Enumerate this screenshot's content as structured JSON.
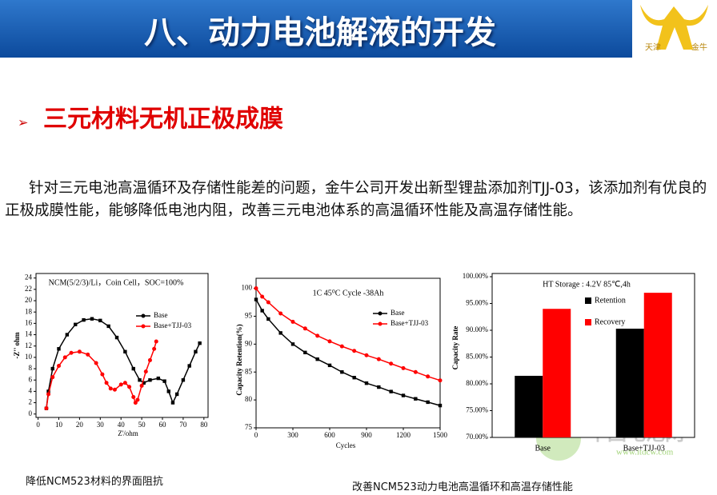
{
  "header": {
    "title": "八、动力电池解液的开发",
    "logo_left": "天津",
    "logo_right": "金牛"
  },
  "section": {
    "heading": "三元材料无机正极成膜"
  },
  "paragraph": "针对三元电池高温循环及存储性能差的问题，金牛公司开发出新型锂盐添加剂TJJ-03，该添加剂有优良的正极成膜性能，能够降低电池内阻，改善三元电池体系的高温循环性能及高温存储性能。",
  "charts": [
    {
      "type": "line",
      "title": "NCM(5/2/3)/Li，Coin Cell，SOC=100%",
      "x_label": "Z'/ohm",
      "y_label": "-Z'' ohm",
      "xlim": [
        -1,
        82
      ],
      "xticks": [
        0,
        10,
        20,
        30,
        40,
        50,
        60,
        70,
        80
      ],
      "ylim": [
        -0.6,
        24.8
      ],
      "yticks": [
        0,
        2,
        4,
        6,
        8,
        10,
        12,
        14,
        16,
        18,
        20,
        22,
        24
      ],
      "series": [
        {
          "name": "Base",
          "color": "#000000",
          "marker": "square",
          "x": [
            4,
            5,
            7,
            10,
            14,
            18,
            22,
            26,
            30,
            34,
            38,
            42,
            46,
            49,
            51,
            54,
            58,
            61,
            63,
            65,
            67,
            70,
            73,
            76,
            78
          ],
          "values": [
            1,
            4,
            8,
            11.5,
            14,
            15.8,
            16.6,
            16.8,
            16.5,
            15.5,
            13.5,
            11,
            8,
            6,
            5.5,
            6,
            6.3,
            5.8,
            4,
            2,
            3.5,
            6,
            8.5,
            11,
            12.5
          ]
        },
        {
          "name": "Base+TJJ-03",
          "color": "#ff0000",
          "marker": "circle",
          "x": [
            4,
            5,
            7,
            10,
            13,
            16,
            20,
            24,
            28,
            31,
            33,
            35,
            37,
            40,
            42,
            44,
            46,
            47,
            48,
            50,
            52,
            54,
            56,
            57
          ],
          "values": [
            1,
            3.5,
            6.5,
            8.5,
            10,
            10.8,
            11,
            10.5,
            9,
            7,
            5.5,
            4.5,
            4.3,
            5.2,
            5.5,
            4.8,
            3,
            2,
            2.5,
            5,
            7.5,
            9.5,
            11.5,
            12.8
          ]
        }
      ]
    },
    {
      "type": "line",
      "title": "1C 45⁰C  Cycle -38Ah",
      "x_label": "Cycles",
      "y_label": "Capacity Retention(%)",
      "xlim": [
        0,
        1500
      ],
      "xticks": [
        0,
        300,
        600,
        900,
        1200,
        1500
      ],
      "ylim": [
        75,
        101.8
      ],
      "yticks": [
        75,
        80,
        85,
        90,
        95,
        100
      ],
      "x": [
        0,
        50,
        100,
        200,
        300,
        400,
        500,
        600,
        700,
        800,
        900,
        1000,
        1100,
        1200,
        1300,
        1400,
        1500
      ],
      "series": [
        {
          "name": "Base",
          "color": "#000000",
          "marker": "square",
          "values": [
            98,
            96,
            94.5,
            92,
            90,
            88.5,
            87.3,
            86.2,
            85,
            84,
            83,
            82.3,
            81.5,
            80.8,
            80.2,
            79.6,
            79
          ]
        },
        {
          "name": "Base+TJJ-03",
          "color": "#ff0000",
          "marker": "circle",
          "values": [
            100,
            98.5,
            97.5,
            95.5,
            94,
            92.8,
            91.5,
            90.5,
            89.6,
            88.8,
            88,
            87.3,
            86.5,
            85.7,
            85,
            84.2,
            83.5
          ]
        }
      ]
    },
    {
      "type": "bar",
      "title": "HT Storage : 4.2V 85℃,4h",
      "y_label": "Capacity Rate",
      "categories": [
        "Base",
        "Base+TJJ-03"
      ],
      "ylim": [
        70,
        100.6
      ],
      "yticks": [
        {
          "value": 70,
          "label": "70.00%"
        },
        {
          "value": 75,
          "label": "75.00%"
        },
        {
          "value": 80,
          "label": "80.00%"
        },
        {
          "value": 85,
          "label": "85.00%"
        },
        {
          "value": 90,
          "label": "90.00%"
        },
        {
          "value": 95,
          "label": "95.00%"
        },
        {
          "value": 100,
          "label": "100.00%"
        }
      ],
      "series": [
        {
          "name": "Retention",
          "color": "#000000",
          "values": [
            81.5,
            90.3
          ]
        },
        {
          "name": "Recovery",
          "color": "#ff0000",
          "values": [
            94,
            97
          ]
        }
      ]
    }
  ],
  "captions": [
    "降低NCM523材料的界面阻抗",
    "改善NCM523动力电池高温循环和高温存储性能"
  ],
  "watermark": {
    "name": "中国电池网",
    "url": "www.itdcw.com"
  }
}
